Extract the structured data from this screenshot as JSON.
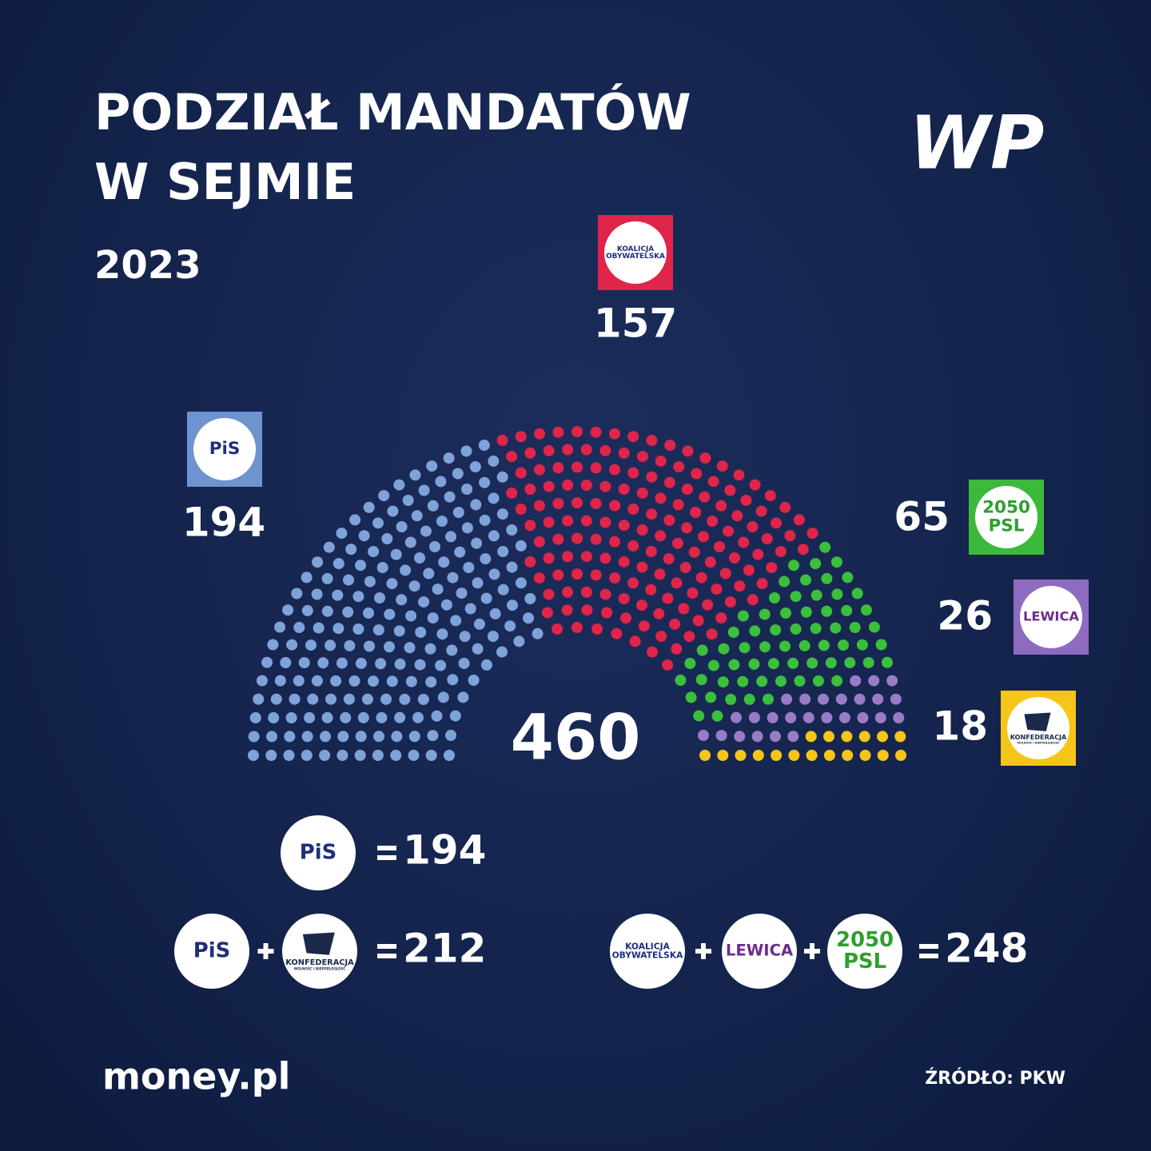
{
  "title": [
    "PODZIAŁ MANDATÓW",
    "W SEJMIE"
  ],
  "subtitle": "2023",
  "brand": "WP",
  "chart_data": {
    "type": "parliament",
    "total": 460,
    "series": [
      {
        "value": 194,
        "color": "#7fa2d8",
        "box_color": "#6f93cf",
        "logo": {
          "text": [
            "PiS"
          ],
          "color": "#1f2f7a"
        }
      },
      {
        "value": 157,
        "color": "#e0254a",
        "box_color": "#e0254a",
        "logo": {
          "text": [
            "KOALICJA",
            "OBYWATELSKA"
          ],
          "color": "#1f2f7a"
        }
      },
      {
        "value": 65,
        "color": "#3cbf3c",
        "box_color": "#3cb93c",
        "logo": {
          "text": [
            "2050",
            "PSL"
          ],
          "color": "#2f9e2f"
        }
      },
      {
        "value": 26,
        "color": "#9a7cc6",
        "box_color": "#8d6cc0",
        "logo": {
          "text": [
            "LEWICA"
          ],
          "color": "#6a2d8f"
        }
      },
      {
        "value": 18,
        "color": "#f5c518",
        "box_color": "#f5c518",
        "logo": {
          "text": [
            "KONFEDERACJA",
            "WOLNOŚĆ I NIEPODLEGŁOŚĆ"
          ],
          "color": "#1b2a4a"
        }
      }
    ]
  },
  "coalitions": [
    {
      "logos": [
        {
          "text": [
            "PiS"
          ],
          "color": "#1f2f7a"
        }
      ],
      "total": 194
    },
    {
      "logos": [
        {
          "text": [
            "PiS"
          ],
          "color": "#1f2f7a"
        },
        {
          "text": [
            "KONFEDERACJA",
            "WOLNOŚĆ I NIEPODLEGŁOŚĆ"
          ],
          "color": "#1b2a4a"
        }
      ],
      "total": 212
    },
    {
      "logos": [
        {
          "text": [
            "KOALICJA",
            "OBYWATELSKA"
          ],
          "color": "#1f2f7a"
        },
        {
          "text": [
            "LEWICA"
          ],
          "color": "#6a2d8f"
        },
        {
          "text": [
            "2050",
            "PSL"
          ],
          "color": "#2f9e2f"
        }
      ],
      "total": 248
    }
  ],
  "footer": {
    "brand": "money.pl",
    "source": "ŹRÓDŁO: PKW"
  }
}
